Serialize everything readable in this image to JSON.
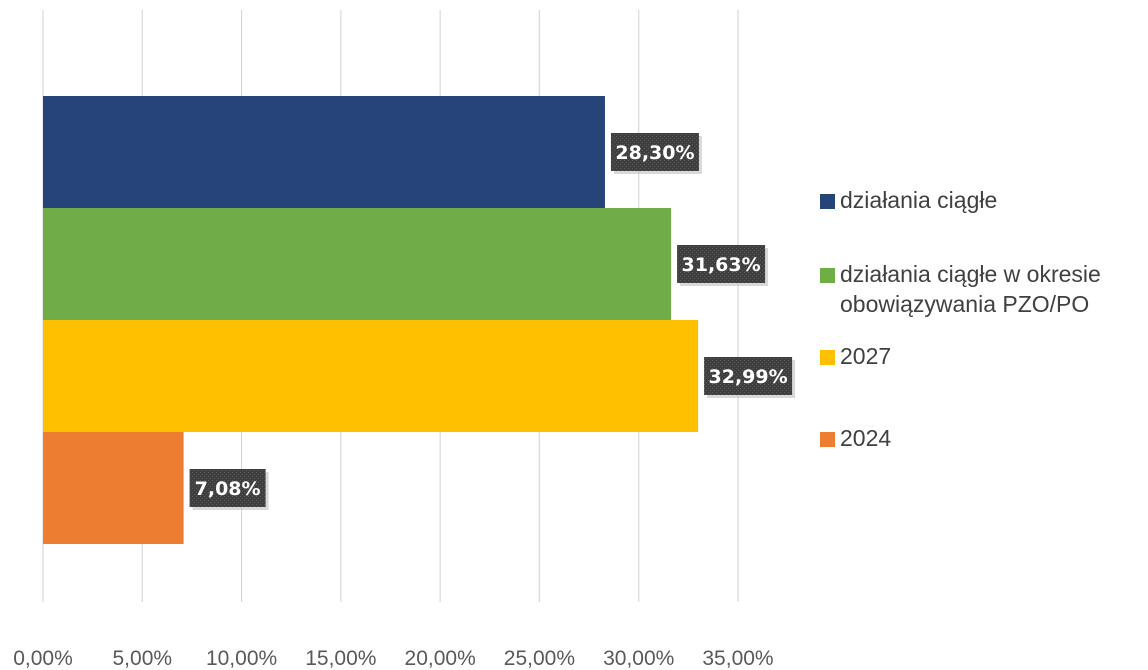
{
  "chart_data": {
    "type": "bar",
    "orientation": "horizontal",
    "title": "",
    "xlabel": "",
    "ylabel": "",
    "xlim": [
      0,
      35
    ],
    "x_ticks": [
      0,
      5,
      10,
      15,
      20,
      25,
      30,
      35
    ],
    "x_tick_labels": [
      "0,00%",
      "5,00%",
      "10,00%",
      "15,00%",
      "20,00%",
      "25,00%",
      "30,00%",
      "35,00%"
    ],
    "grid": "vertical",
    "legend_position": "right",
    "series": [
      {
        "name": "działania ciągłe",
        "value": 28.3,
        "label": "28,30%",
        "color": "#264478"
      },
      {
        "name": "działania ciągłe w okresie obowiązywania PZO/PO",
        "value": 31.63,
        "label": "31,63%",
        "color": "#70AD47"
      },
      {
        "name": "2027",
        "value": 32.99,
        "label": "32,99%",
        "color": "#FFC000"
      },
      {
        "name": "2024",
        "value": 7.08,
        "label": "7,08%",
        "color": "#ED7D31"
      }
    ],
    "data_label_box_color": "#404040"
  }
}
